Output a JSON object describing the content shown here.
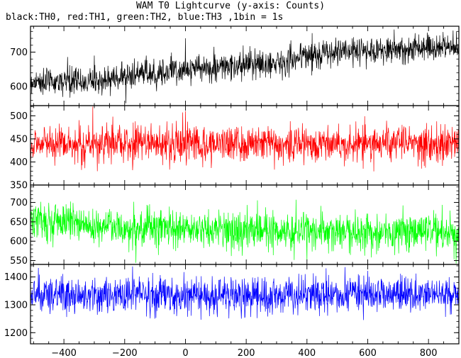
{
  "chart_data": {
    "type": "line",
    "title": "WAM T0 Lightcurve (y-axis: Counts)",
    "subtitle": "black:TH0, red:TH1, green:TH2, blue:TH3 ,1bin = 1s",
    "xlim": [
      -510,
      900
    ],
    "x_ticks": [
      -400,
      -200,
      0,
      200,
      400,
      600,
      800
    ],
    "x_tick_labels": [
      "−400",
      "−200",
      "0",
      "200",
      "400",
      "600",
      "800"
    ],
    "panels": [
      {
        "color": "#000000",
        "ylim": [
          545,
          775
        ],
        "y_ticks": [
          600,
          700
        ],
        "y_tick_labels": [
          "600",
          "700"
        ],
        "baseline_points": [
          [
            -510,
            615
          ],
          [
            -300,
            615
          ],
          [
            -200,
            630
          ],
          [
            0,
            650
          ],
          [
            200,
            660
          ],
          [
            300,
            670
          ],
          [
            400,
            690
          ],
          [
            500,
            700
          ],
          [
            700,
            710
          ],
          [
            900,
            715
          ]
        ],
        "noise_sigma": 20,
        "spikes": [
          [
            -300,
            690
          ],
          [
            0,
            740
          ]
        ]
      },
      {
        "color": "#ff0000",
        "ylim": [
          350,
          522
        ],
        "y_ticks": [
          350,
          400,
          450,
          500
        ],
        "y_tick_labels": [
          "350",
          "400",
          "450",
          "500"
        ],
        "baseline_points": [
          [
            -510,
            440
          ],
          [
            900,
            440
          ]
        ],
        "noise_sigma": 20,
        "spikes": [
          [
            -305,
            520
          ],
          [
            -290,
            380
          ],
          [
            0,
            510
          ]
        ]
      },
      {
        "color": "#00ff00",
        "ylim": [
          540,
          745
        ],
        "y_ticks": [
          550,
          600,
          650,
          700
        ],
        "y_tick_labels": [
          "550",
          "600",
          "650",
          "700"
        ],
        "baseline_points": [
          [
            -510,
            660
          ],
          [
            -400,
            650
          ],
          [
            -200,
            635
          ],
          [
            0,
            630
          ],
          [
            400,
            625
          ],
          [
            900,
            620
          ]
        ],
        "noise_sigma": 25,
        "spikes": []
      },
      {
        "color": "#0000ff",
        "ylim": [
          1160,
          1445
        ],
        "y_ticks": [
          1200,
          1300,
          1400
        ],
        "y_tick_labels": [
          "1200",
          "1300",
          "1400"
        ],
        "baseline_points": [
          [
            -510,
            1335
          ],
          [
            900,
            1335
          ]
        ],
        "noise_sigma": 33,
        "spikes": []
      }
    ]
  }
}
